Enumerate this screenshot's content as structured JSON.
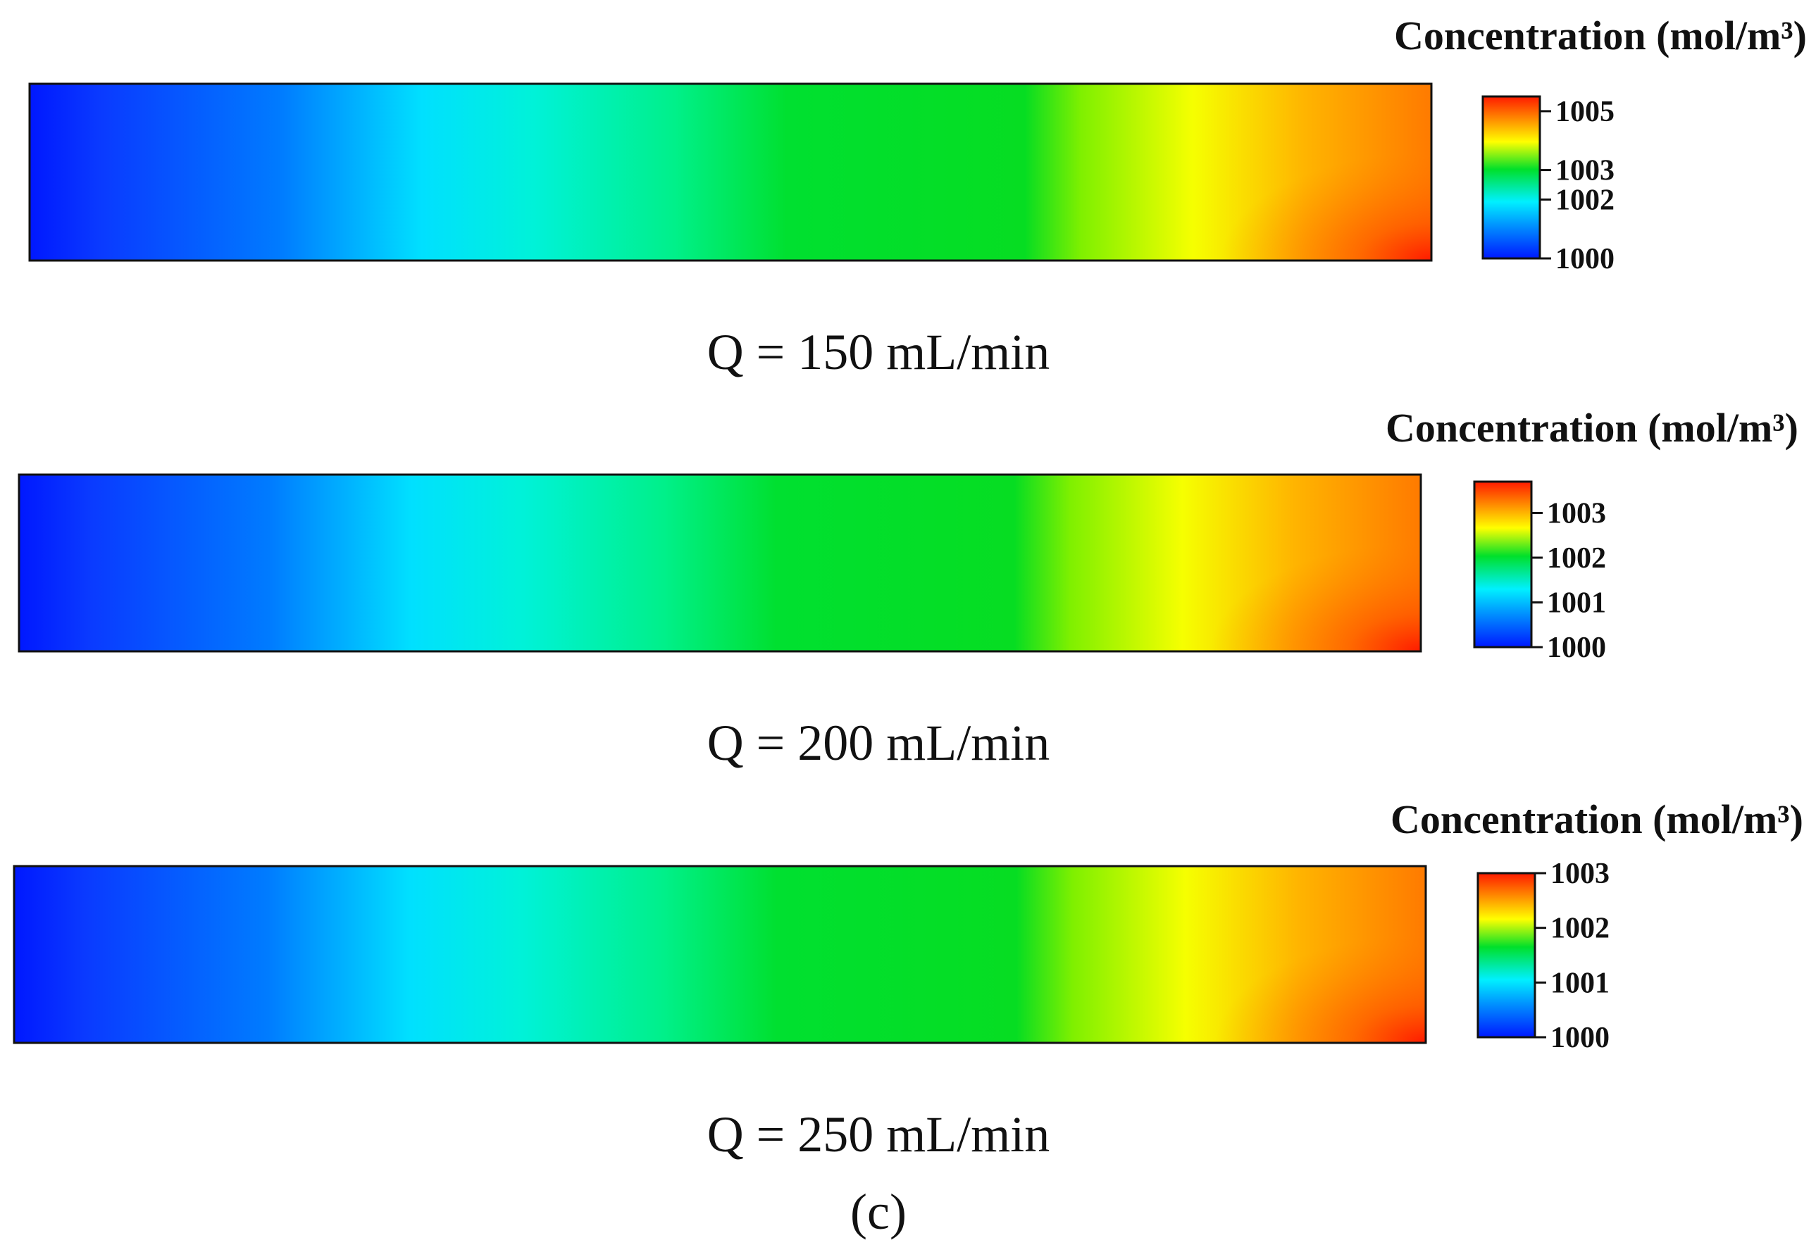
{
  "figure_label": "(c)",
  "colormap": {
    "name": "rainbow",
    "stops": [
      "#0018ff",
      "#00f0ff",
      "#00e02a",
      "#ffff00",
      "#ff8c00",
      "#ff1a00"
    ]
  },
  "chart_data": [
    {
      "type": "heatmap",
      "title": "Concentration (mol/m³)",
      "caption": "Q = 150 mL/min",
      "colorbar": {
        "range": [
          1000,
          1005.5
        ],
        "ticks": [
          1000,
          1002,
          1003,
          1005
        ],
        "tick_labels": [
          "1000",
          "1002",
          "1003",
          "1005"
        ]
      }
    },
    {
      "type": "heatmap",
      "title": "Concentration (mol/m³)",
      "caption": "Q = 200 mL/min",
      "colorbar": {
        "range": [
          1000,
          1003.7
        ],
        "ticks": [
          1000,
          1001,
          1002,
          1003
        ],
        "tick_labels": [
          "1000",
          "1001",
          "1002",
          "1003"
        ]
      }
    },
    {
      "type": "heatmap",
      "title": "Concentration (mol/m³)",
      "caption": "Q = 250 mL/min",
      "colorbar": {
        "range": [
          1000,
          1003
        ],
        "ticks": [
          1000,
          1001,
          1002,
          1003
        ],
        "tick_labels": [
          "1000",
          "1001",
          "1002",
          "1003"
        ]
      }
    }
  ]
}
